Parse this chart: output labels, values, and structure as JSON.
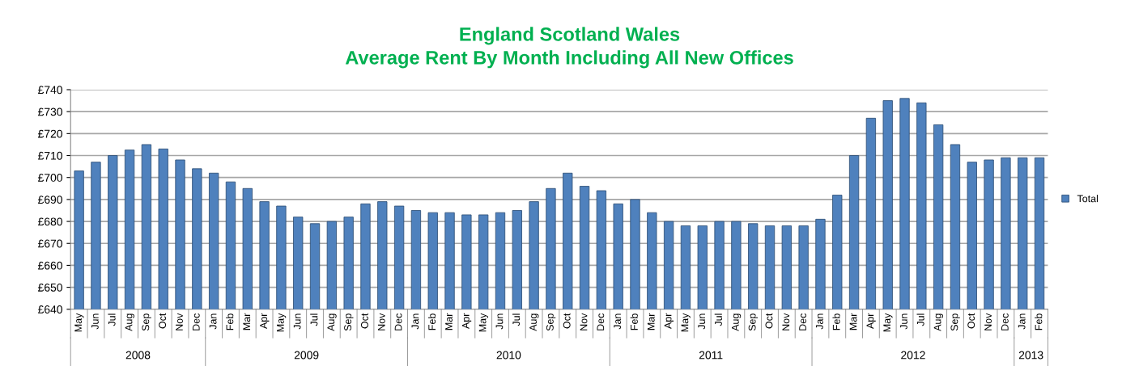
{
  "chart_data": {
    "type": "bar",
    "title": "England Scotland Wales\nAverage Rent By Month Including All New Offices",
    "categories": [
      "May",
      "Jun",
      "Jul",
      "Aug",
      "Sep",
      "Oct",
      "Nov",
      "Dec",
      "Jan",
      "Feb",
      "Mar",
      "Apr",
      "May",
      "Jun",
      "Jul",
      "Aug",
      "Sep",
      "Oct",
      "Nov",
      "Dec",
      "Jan",
      "Feb",
      "Mar",
      "Apr",
      "May",
      "Jun",
      "Jul",
      "Aug",
      "Sep",
      "Oct",
      "Nov",
      "Dec",
      "Jan",
      "Feb",
      "Mar",
      "Apr",
      "May",
      "Jun",
      "Jul",
      "Aug",
      "Sep",
      "Oct",
      "Nov",
      "Dec",
      "Jan",
      "Feb",
      "Mar",
      "Apr",
      "May",
      "Jun",
      "Jul",
      "Aug",
      "Sep",
      "Oct",
      "Nov",
      "Dec",
      "Jan",
      "Feb"
    ],
    "series": [
      {
        "name": "Total",
        "color": "#4f81bd",
        "values": [
          703,
          707,
          710,
          712.5,
          715,
          713,
          708,
          704,
          702,
          698,
          695,
          689,
          687,
          682,
          679,
          680,
          682,
          688,
          689,
          687,
          685,
          684,
          684,
          683,
          683,
          684,
          685,
          689,
          695,
          702,
          696,
          694,
          688,
          690,
          684,
          680,
          678,
          678,
          680,
          680,
          679,
          678,
          678,
          678,
          681,
          692,
          710,
          727,
          735,
          736,
          734,
          724,
          715,
          707,
          708,
          709,
          709,
          709
        ]
      }
    ],
    "x2lim": [
      "2008-05-01",
      "2013-03-01"
    ],
    "x2ticks": [
      {
        "value": "2008-09-01",
        "label": "2008"
      },
      {
        "value": "2009-07-01",
        "label": "2009"
      },
      {
        "value": "2010-07-01",
        "label": "2010"
      },
      {
        "value": "2011-07-01",
        "label": "2011"
      },
      {
        "value": "2012-07-01",
        "label": "2012"
      },
      {
        "value": "2013-02-01",
        "label": "2013"
      }
    ],
    "ylim": [
      640,
      740
    ],
    "yticks": [
      {
        "value": 640,
        "label": "£640"
      },
      {
        "value": 650,
        "label": "£650"
      },
      {
        "value": 660,
        "label": "£660"
      },
      {
        "value": 670,
        "label": "£670"
      },
      {
        "value": 680,
        "label": "£680"
      },
      {
        "value": 690,
        "label": "£690"
      },
      {
        "value": 700,
        "label": "£700"
      },
      {
        "value": 710,
        "label": "£710"
      },
      {
        "value": 720,
        "label": "£720"
      },
      {
        "value": 730,
        "label": "£730"
      },
      {
        "value": 740,
        "label": "£740"
      }
    ],
    "grid": "y",
    "legend": "right"
  }
}
